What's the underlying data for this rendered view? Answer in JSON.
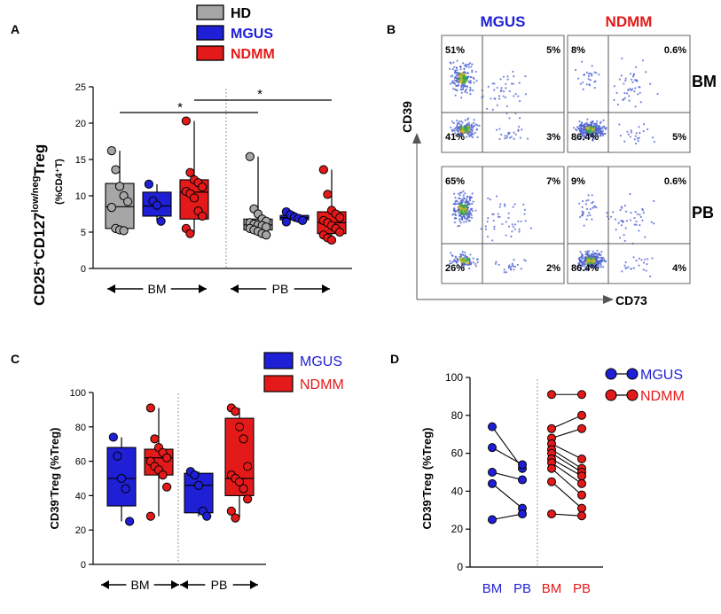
{
  "panel_labels": [
    "A",
    "B",
    "C",
    "D"
  ],
  "colors": {
    "HD": "#a6a6a6",
    "MGUS": "#1f1fd6",
    "NDMM": "#e41a1a"
  },
  "chart_data": [
    {
      "id": "A",
      "type": "box",
      "ylabel_main": "CD25⁺CD127",
      "ylabel_sup": "low/neg",
      "ylabel_tail": "Treg",
      "ylabel_sub": "(%CD4⁺T)",
      "ylim": [
        0,
        25
      ],
      "yticks": [
        0,
        5,
        10,
        15,
        20,
        25
      ],
      "legend": [
        "HD",
        "MGUS",
        "NDMM"
      ],
      "group_labels": [
        "BM",
        "PB"
      ],
      "significance": [
        "*",
        "*"
      ],
      "boxes": [
        {
          "group": "HD",
          "tissue": "BM",
          "min": 5.0,
          "q1": 5.5,
          "median": 8.5,
          "q3": 11.7,
          "max": 16.2,
          "points": [
            16.2,
            13.6,
            11.3,
            10.0,
            9.2,
            8.4,
            5.5,
            5.3,
            5.2
          ]
        },
        {
          "group": "MGUS",
          "tissue": "BM",
          "min": 6.5,
          "q1": 7.2,
          "median": 8.6,
          "q3": 10.5,
          "max": 11.6,
          "points": [
            11.6,
            9.3,
            8.7,
            6.5
          ]
        },
        {
          "group": "NDMM",
          "tissue": "BM",
          "min": 4.8,
          "q1": 6.8,
          "median": 10.5,
          "q3": 12.2,
          "max": 20.3,
          "points": [
            20.3,
            13.2,
            12.2,
            11.8,
            11.2,
            10.6,
            10.3,
            9.7,
            7.9,
            7.2,
            5.5,
            4.8
          ]
        },
        {
          "group": "HD",
          "tissue": "PB",
          "min": 4.5,
          "q1": 5.3,
          "median": 6.0,
          "q3": 6.8,
          "max": 15.4,
          "points": [
            15.4,
            8.2,
            7.5,
            6.8,
            6.5,
            6.3,
            6.1,
            6.0,
            5.9,
            5.7,
            5.5,
            5.3,
            5.1,
            4.8,
            4.6
          ]
        },
        {
          "group": "MGUS",
          "tissue": "PB",
          "min": 6.4,
          "q1": 6.7,
          "median": 7.0,
          "q3": 7.3,
          "max": 7.8,
          "points": [
            7.8,
            7.4,
            7.1,
            6.9,
            6.6,
            6.4
          ]
        },
        {
          "group": "NDMM",
          "tissue": "PB",
          "min": 3.8,
          "q1": 4.8,
          "median": 6.3,
          "q3": 7.8,
          "max": 13.6,
          "points": [
            13.6,
            10.2,
            8.0,
            7.5,
            7.0,
            6.6,
            6.3,
            5.9,
            5.5,
            5.0,
            4.6,
            4.2,
            3.9
          ]
        }
      ]
    },
    {
      "id": "B",
      "type": "flow_cytometry",
      "columns": [
        "MGUS",
        "NDMM"
      ],
      "rows": [
        "BM",
        "PB"
      ],
      "xlabel": "CD73",
      "ylabel": "CD39",
      "quadrants": [
        [
          [
            "51%",
            "5%",
            "41%",
            "3%"
          ],
          [
            "8%",
            "0.6%",
            "86.4%",
            "5%"
          ]
        ],
        [
          [
            "65%",
            "7%",
            "26%",
            "2%"
          ],
          [
            "9%",
            "0.6%",
            "86.4%",
            "4%"
          ]
        ]
      ]
    },
    {
      "id": "C",
      "type": "box",
      "ylabel_main": "CD39",
      "ylabel_sup": "-",
      "ylabel_tail": "Treg (%Treg)",
      "ylim": [
        0,
        100
      ],
      "yticks": [
        0,
        20,
        40,
        60,
        80,
        100
      ],
      "legend": [
        "MGUS",
        "NDMM"
      ],
      "group_labels": [
        "BM",
        "PB"
      ],
      "boxes": [
        {
          "group": "MGUS",
          "tissue": "BM",
          "min": 25,
          "q1": 34,
          "median": 50,
          "q3": 68,
          "max": 74,
          "points": [
            74,
            63,
            50,
            44,
            25
          ]
        },
        {
          "group": "NDMM",
          "tissue": "BM",
          "min": 28,
          "q1": 52,
          "median": 62,
          "q3": 67,
          "max": 91,
          "points": [
            91,
            73,
            68,
            65,
            62,
            60,
            57,
            55,
            52,
            45,
            28
          ]
        },
        {
          "group": "MGUS",
          "tissue": "PB",
          "min": 28,
          "q1": 30,
          "median": 46,
          "q3": 53,
          "max": 54,
          "points": [
            54,
            52,
            46,
            31,
            28
          ]
        },
        {
          "group": "NDMM",
          "tissue": "PB",
          "min": 27,
          "q1": 40,
          "median": 50,
          "q3": 85,
          "max": 91,
          "points": [
            91,
            89,
            80,
            73,
            57,
            52,
            50,
            48,
            44,
            38,
            31,
            27
          ]
        }
      ]
    },
    {
      "id": "D",
      "type": "paired_line",
      "ylabel_main": "CD39",
      "ylabel_sup": "-",
      "ylabel_tail": "Treg (%Treg)",
      "ylim": [
        0,
        100
      ],
      "yticks": [
        0,
        20,
        40,
        60,
        80,
        100
      ],
      "legend": [
        "MGUS",
        "NDMM"
      ],
      "xticklabels": [
        "BM",
        "PB",
        "BM",
        "PB"
      ],
      "pairs": {
        "MGUS": [
          [
            74,
            52
          ],
          [
            63,
            54
          ],
          [
            50,
            46
          ],
          [
            44,
            31
          ],
          [
            25,
            28
          ]
        ],
        "NDMM": [
          [
            91,
            91
          ],
          [
            73,
            80
          ],
          [
            68,
            73
          ],
          [
            65,
            57
          ],
          [
            62,
            52
          ],
          [
            60,
            50
          ],
          [
            57,
            48
          ],
          [
            55,
            44
          ],
          [
            52,
            38
          ],
          [
            45,
            31
          ],
          [
            28,
            27
          ]
        ]
      }
    }
  ]
}
